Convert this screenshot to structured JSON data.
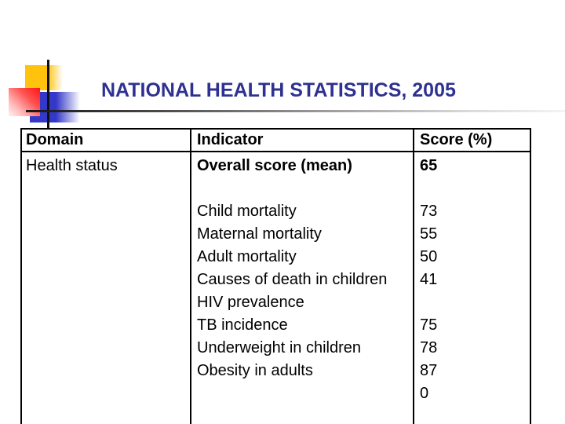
{
  "slide": {
    "title": "NATIONAL HEALTH STATISTICS, 2005"
  },
  "colors": {
    "title": "#2e3191",
    "deco_yellow": "#ffc30d",
    "deco_blue": "#3438c8",
    "deco_red": "#ff1414"
  },
  "table": {
    "headers": [
      "Domain",
      "Indicator",
      "Score (%)"
    ],
    "columns": [
      {
        "name": "domain",
        "lines": [
          {
            "t": "Health status"
          }
        ]
      },
      {
        "name": "indicator",
        "lines": [
          {
            "t": "Overall score (mean)",
            "b": true
          },
          {
            "t": ""
          },
          {
            "t": "Child mortality"
          },
          {
            "t": "Maternal mortality"
          },
          {
            "t": "Adult mortality"
          },
          {
            "t": "Causes of death in children"
          },
          {
            "t": "HIV prevalence"
          },
          {
            "t": "TB incidence"
          },
          {
            "t": "Underweight in children"
          },
          {
            "t": "Obesity in adults"
          }
        ]
      },
      {
        "name": "score",
        "lines": [
          {
            "t": "65",
            "b": true
          },
          {
            "t": ""
          },
          {
            "t": "73"
          },
          {
            "t": "55"
          },
          {
            "t": "50"
          },
          {
            "t": "41"
          },
          {
            "t": ""
          },
          {
            "t": "75"
          },
          {
            "t": "78"
          },
          {
            "t": "87"
          },
          {
            "t": "0"
          }
        ]
      }
    ]
  }
}
